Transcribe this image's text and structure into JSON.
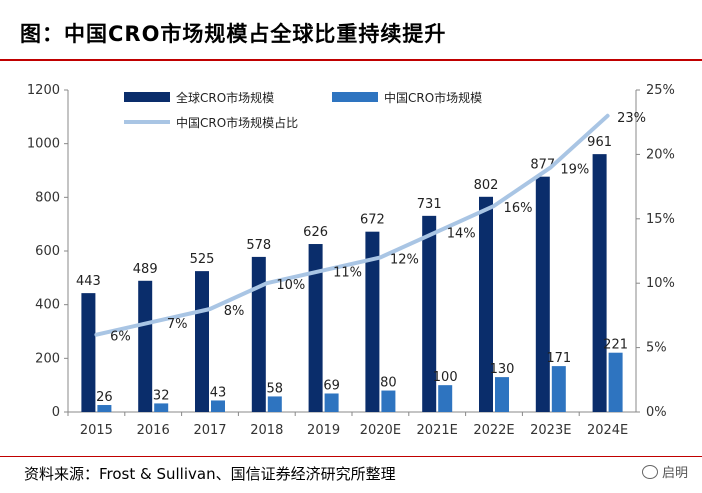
{
  "header": {
    "title": "图：中国CRO市场规模占全球比重持续提升"
  },
  "footer": {
    "source": "资料来源：Frost & Sullivan、国信证券经济研究所整理",
    "watermark": "启明"
  },
  "colors": {
    "global_bar": "#0a2d6b",
    "china_bar": "#2e74c0",
    "share_line": "#a9c5e4",
    "title_rule": "#c00000"
  },
  "chart_data": {
    "type": "bar",
    "categories": [
      "2015",
      "2016",
      "2017",
      "2018",
      "2019",
      "2020E",
      "2021E",
      "2022E",
      "2023E",
      "2024E"
    ],
    "series": [
      {
        "name": "全球CRO市场规模",
        "type": "bar",
        "axis": "left",
        "values": [
          443,
          489,
          525,
          578,
          626,
          672,
          731,
          802,
          877,
          961
        ],
        "labels": [
          "443",
          "489",
          "525",
          "578",
          "626",
          "672",
          "731",
          "802",
          "877",
          "961"
        ]
      },
      {
        "name": "中国CRO市场规模",
        "type": "bar",
        "axis": "left",
        "values": [
          26,
          32,
          43,
          58,
          69,
          80,
          100,
          130,
          171,
          221
        ],
        "labels": [
          "26",
          "32",
          "43",
          "58",
          "69",
          "80",
          "100",
          "130",
          "171",
          "221"
        ]
      },
      {
        "name": "中国CRO市场规模占比",
        "type": "line",
        "axis": "right",
        "values": [
          6,
          7,
          8,
          10,
          11,
          12,
          14,
          16,
          19,
          23
        ],
        "labels": [
          "6%",
          "7%",
          "8%",
          "10%",
          "11%",
          "12%",
          "14%",
          "16%",
          "19%",
          "23%"
        ]
      }
    ],
    "y_left": {
      "min": 0,
      "max": 1200,
      "ticks": [
        "0",
        "200",
        "400",
        "600",
        "800",
        "1000",
        "1200"
      ]
    },
    "y_right": {
      "min": 0,
      "max": 25,
      "ticks": [
        "0%",
        "5%",
        "10%",
        "15%",
        "20%",
        "25%"
      ]
    },
    "grid": false,
    "legend_position": "top-left"
  }
}
